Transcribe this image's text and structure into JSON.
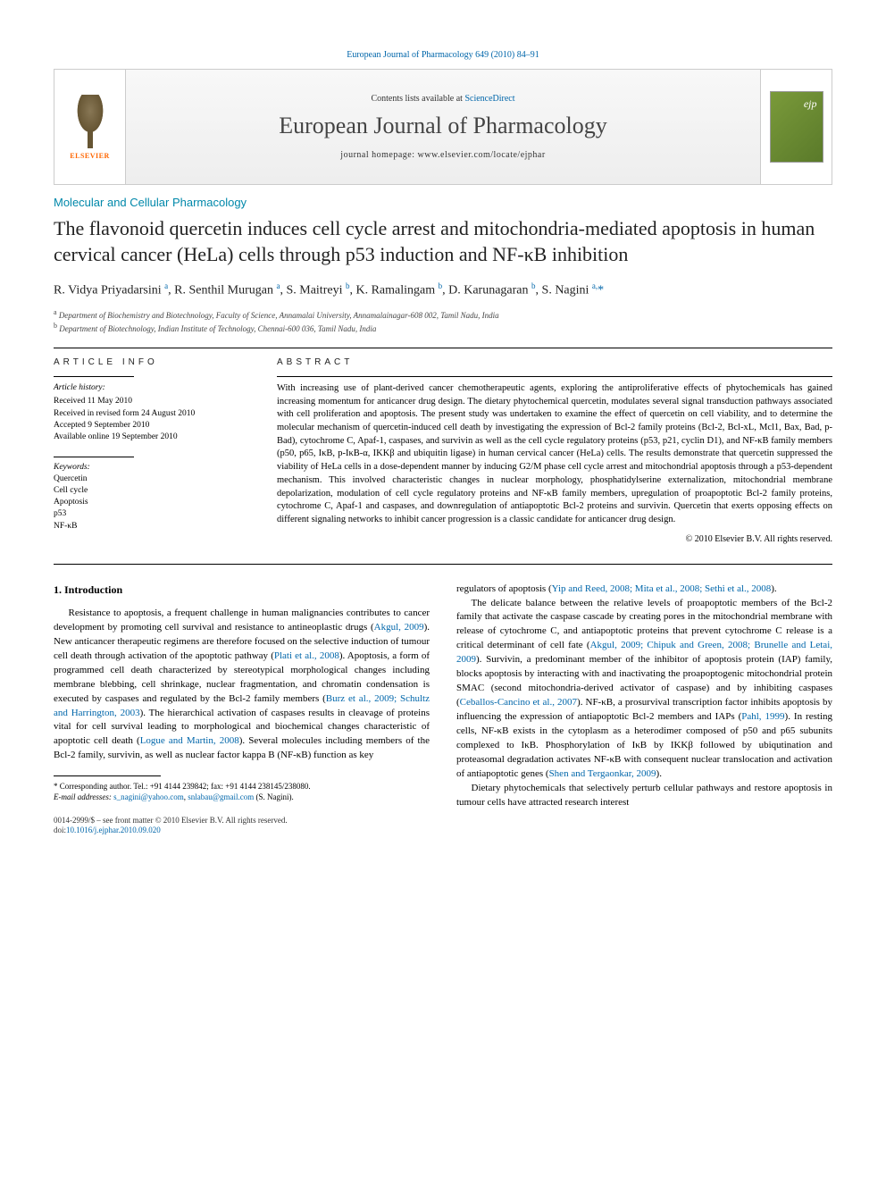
{
  "journal_link_top": "European Journal of Pharmacology 649 (2010) 84–91",
  "banner": {
    "contents_prefix": "Contents lists available at ",
    "contents_link": "ScienceDirect",
    "journal_name": "European Journal of Pharmacology",
    "homepage_label": "journal homepage: www.elsevier.com/locate/ejphar",
    "publisher": "ELSEVIER"
  },
  "section_label": "Molecular and Cellular Pharmacology",
  "title": "The flavonoid quercetin induces cell cycle arrest and mitochondria-mediated apoptosis in human cervical cancer (HeLa) cells through p53 induction and NF-κB inhibition",
  "authors_html": "R. Vidya Priyadarsini <sup>a</sup>, R. Senthil Murugan <sup>a</sup>, S. Maitreyi <sup>b</sup>, K. Ramalingam <sup>b</sup>, D. Karunagaran <sup>b</sup>, S. Nagini <sup>a,</sup><span class='star'>*</span>",
  "affiliations": {
    "a": "Department of Biochemistry and Biotechnology, Faculty of Science, Annamalai University, Annamalainagar-608 002, Tamil Nadu, India",
    "b": "Department of Biotechnology, Indian Institute of Technology, Chennai-600 036, Tamil Nadu, India"
  },
  "article_info": {
    "heading": "ARTICLE INFO",
    "history_label": "Article history:",
    "received": "Received 11 May 2010",
    "revised": "Received in revised form 24 August 2010",
    "accepted": "Accepted 9 September 2010",
    "online": "Available online 19 September 2010",
    "keywords_label": "Keywords:",
    "keywords": [
      "Quercetin",
      "Cell cycle",
      "Apoptosis",
      "p53",
      "NF-κB"
    ]
  },
  "abstract": {
    "heading": "ABSTRACT",
    "text": "With increasing use of plant-derived cancer chemotherapeutic agents, exploring the antiproliferative effects of phytochemicals has gained increasing momentum for anticancer drug design. The dietary phytochemical quercetin, modulates several signal transduction pathways associated with cell proliferation and apoptosis. The present study was undertaken to examine the effect of quercetin on cell viability, and to determine the molecular mechanism of quercetin-induced cell death by investigating the expression of Bcl-2 family proteins (Bcl-2, Bcl-xL, Mcl1, Bax, Bad, p-Bad), cytochrome C, Apaf-1, caspases, and survivin as well as the cell cycle regulatory proteins (p53, p21, cyclin D1), and NF-κB family members (p50, p65, IκB, p-IκB-α, IKKβ and ubiquitin ligase) in human cervical cancer (HeLa) cells. The results demonstrate that quercetin suppressed the viability of HeLa cells in a dose-dependent manner by inducing G2/M phase cell cycle arrest and mitochondrial apoptosis through a p53-dependent mechanism. This involved characteristic changes in nuclear morphology, phosphatidylserine externalization, mitochondrial membrane depolarization, modulation of cell cycle regulatory proteins and NF-κB family members, upregulation of proapoptotic Bcl-2 family proteins, cytochrome C, Apaf-1 and caspases, and downregulation of antiapoptotic Bcl-2 proteins and survivin. Quercetin that exerts opposing effects on different signaling networks to inhibit cancer progression is a classic candidate for anticancer drug design.",
    "copyright": "© 2010 Elsevier B.V. All rights reserved."
  },
  "body": {
    "intro_heading": "1. Introduction",
    "col1_p1_a": "Resistance to apoptosis, a frequent challenge in human malignancies contributes to cancer development by promoting cell survival and resistance to antineoplastic drugs (",
    "col1_p1_cite1": "Akgul, 2009",
    "col1_p1_b": "). New anticancer therapeutic regimens are therefore focused on the selective induction of tumour cell death through activation of the apoptotic pathway (",
    "col1_p1_cite2": "Plati et al., 2008",
    "col1_p1_c": "). Apoptosis, a form of programmed cell death characterized by stereotypical morphological changes including membrane blebbing, cell shrinkage, nuclear fragmentation, and chromatin condensation is executed by caspases and regulated by the Bcl-2 family members (",
    "col1_p1_cite3": "Burz et al., 2009; Schultz and Harrington, 2003",
    "col1_p1_d": "). The hierarchical activation of caspases results in cleavage of proteins vital for cell survival leading to morphological and biochemical changes characteristic of apoptotic cell death (",
    "col1_p1_cite4": "Logue and Martin, 2008",
    "col1_p1_e": "). Several molecules including members of the Bcl-2 family, survivin, as well as nuclear factor kappa B (NF-κB) function as key",
    "col2_p0_a": "regulators of apoptosis (",
    "col2_p0_cite": "Yip and Reed, 2008; Mita et al., 2008; Sethi et al., 2008",
    "col2_p0_b": ").",
    "col2_p1_a": "The delicate balance between the relative levels of proapoptotic members of the Bcl-2 family that activate the caspase cascade by creating pores in the mitochondrial membrane with release of cytochrome C, and antiapoptotic proteins that prevent cytochrome C release is a critical determinant of cell fate (",
    "col2_p1_cite1": "Akgul, 2009; Chipuk and Green, 2008; Brunelle and Letai, 2009",
    "col2_p1_b": "). Survivin, a predominant member of the inhibitor of apoptosis protein (IAP) family, blocks apoptosis by interacting with and inactivating the proapoptogenic mitochondrial protein SMAC (second mitochondria-derived activator of caspase) and by inhibiting caspases (",
    "col2_p1_cite2": "Ceballos-Cancino et al., 2007",
    "col2_p1_c": "). NF-κB, a prosurvival transcription factor inhibits apoptosis by influencing the expression of antiapoptotic Bcl-2 members and IAPs (",
    "col2_p1_cite3": "Pahl, 1999",
    "col2_p1_d": "). In resting cells, NF-κB exists in the cytoplasm as a heterodimer composed of p50 and p65 subunits complexed to IκB. Phosphorylation of IκB by IKKβ followed by ubiqutination and proteasomal degradation activates NF-κB with consequent nuclear translocation and activation of antiapoptotic genes (",
    "col2_p1_cite4": "Shen and Tergaonkar, 2009",
    "col2_p1_e": ").",
    "col2_p2": "Dietary phytochemicals that selectively perturb cellular pathways and restore apoptosis in tumour cells have attracted research interest"
  },
  "footnote": {
    "corr": "* Corresponding author. Tel.: +91 4144 239842; fax: +91 4144 238145/238080.",
    "email_label": "E-mail addresses: ",
    "email1": "s_nagini@yahoo.com",
    "email_sep": ", ",
    "email2": "snlabau@gmail.com",
    "email_suffix": " (S. Nagini)."
  },
  "bottom": {
    "issn": "0014-2999/$ – see front matter © 2010 Elsevier B.V. All rights reserved.",
    "doi_label": "doi:",
    "doi": "10.1016/j.ejphar.2010.09.020"
  },
  "colors": {
    "link": "#0066aa",
    "section": "#0088aa",
    "elsevier": "#ff6600",
    "cover": "#7a9a3a"
  }
}
